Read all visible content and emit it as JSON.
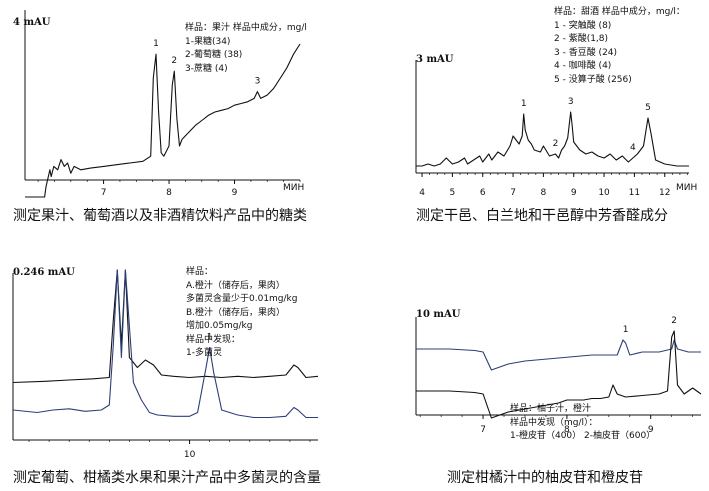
{
  "chart_data": [
    {
      "type": "line",
      "unit_label": "4 mAU",
      "xlabel": "МИН",
      "xlim": [
        5.8,
        10.0
      ],
      "ticks": [
        "7",
        "8",
        "9"
      ],
      "tick_values": [
        7,
        8,
        9
      ],
      "caption": "测定果汁、葡萄酒以及非酒精饮料产品中的糖类",
      "legend": [
        "样品：果汁 样品中成分，mg/l",
        "1-果糖(34)",
        "2-葡萄糖 (38)",
        "3-蔗糖 (4)"
      ],
      "peak_labels": [
        {
          "label": "1",
          "x": 7.8
        },
        {
          "label": "2",
          "x": 8.08
        },
        {
          "label": "3",
          "x": 9.35
        }
      ],
      "series": [
        {
          "color": "#111111",
          "values": [
            [
              5.8,
              -5
            ],
            [
              6.1,
              -5
            ],
            [
              6.12,
              -2
            ],
            [
              6.18,
              3
            ],
            [
              6.2,
              1
            ],
            [
              6.24,
              4
            ],
            [
              6.3,
              3
            ],
            [
              6.35,
              6
            ],
            [
              6.4,
              4
            ],
            [
              6.45,
              5
            ],
            [
              6.5,
              2
            ],
            [
              6.55,
              4
            ],
            [
              6.65,
              3
            ],
            [
              6.8,
              3.5
            ],
            [
              7.0,
              4
            ],
            [
              7.2,
              4.5
            ],
            [
              7.4,
              5
            ],
            [
              7.6,
              5.5
            ],
            [
              7.72,
              7
            ],
            [
              7.76,
              30
            ],
            [
              7.8,
              37
            ],
            [
              7.84,
              20
            ],
            [
              7.88,
              8
            ],
            [
              7.92,
              7
            ],
            [
              8.0,
              10
            ],
            [
              8.05,
              28
            ],
            [
              8.08,
              32
            ],
            [
              8.12,
              18
            ],
            [
              8.16,
              10
            ],
            [
              8.2,
              12
            ],
            [
              8.3,
              14
            ],
            [
              8.4,
              16
            ],
            [
              8.5,
              17.5
            ],
            [
              8.6,
              19
            ],
            [
              8.7,
              20
            ],
            [
              8.8,
              20.5
            ],
            [
              8.9,
              21
            ],
            [
              9.0,
              22
            ],
            [
              9.1,
              22.5
            ],
            [
              9.2,
              23
            ],
            [
              9.3,
              24
            ],
            [
              9.35,
              26
            ],
            [
              9.4,
              24
            ],
            [
              9.5,
              25
            ],
            [
              9.6,
              27
            ],
            [
              9.7,
              30
            ],
            [
              9.8,
              33
            ],
            [
              9.9,
              37
            ],
            [
              10.0,
              40
            ]
          ]
        }
      ]
    },
    {
      "type": "line",
      "unit_label": "3 mAU",
      "xlabel": "МИН",
      "xlim": [
        3.8,
        12.8
      ],
      "ticks": [
        "4",
        "5",
        "6",
        "7",
        "8",
        "9",
        "10",
        "11",
        "12"
      ],
      "tick_values": [
        4,
        5,
        6,
        7,
        8,
        9,
        10,
        11,
        12
      ],
      "caption": "测定干邑、白兰地和干邑醇中芳香醛成分",
      "legend": [
        "样品：甜酒 样品中成分，mg/l：",
        "1 - 突触酸 (8)",
        "2 - 紫酸(1,8)",
        "3 - 香豆酸 (24)",
        "4 - 咖啡酸 (4)",
        "5 - 没算子酸 (256)"
      ],
      "peak_labels": [
        {
          "label": "1",
          "x": 7.35
        },
        {
          "label": "2",
          "x": 8.4
        },
        {
          "label": "3",
          "x": 8.9
        },
        {
          "label": "4",
          "x": 10.95
        },
        {
          "label": "5",
          "x": 11.45
        }
      ],
      "series": [
        {
          "color": "#111111",
          "values": [
            [
              3.8,
              2
            ],
            [
              4.0,
              2
            ],
            [
              4.2,
              3
            ],
            [
              4.4,
              2
            ],
            [
              4.6,
              3
            ],
            [
              4.8,
              6
            ],
            [
              5.0,
              3
            ],
            [
              5.2,
              4
            ],
            [
              5.4,
              6
            ],
            [
              5.5,
              3
            ],
            [
              5.7,
              5
            ],
            [
              5.9,
              7
            ],
            [
              6.0,
              4
            ],
            [
              6.2,
              8
            ],
            [
              6.3,
              5
            ],
            [
              6.5,
              9
            ],
            [
              6.7,
              7
            ],
            [
              6.9,
              12
            ],
            [
              7.0,
              17
            ],
            [
              7.1,
              15
            ],
            [
              7.2,
              13
            ],
            [
              7.3,
              17
            ],
            [
              7.35,
              28
            ],
            [
              7.4,
              20
            ],
            [
              7.5,
              15
            ],
            [
              7.6,
              13
            ],
            [
              7.7,
              10
            ],
            [
              7.9,
              9
            ],
            [
              8.0,
              12
            ],
            [
              8.2,
              7
            ],
            [
              8.4,
              8
            ],
            [
              8.5,
              6
            ],
            [
              8.6,
              10
            ],
            [
              8.7,
              12
            ],
            [
              8.8,
              16
            ],
            [
              8.9,
              29
            ],
            [
              8.95,
              22
            ],
            [
              9.0,
              14
            ],
            [
              9.2,
              10
            ],
            [
              9.4,
              8
            ],
            [
              9.6,
              9
            ],
            [
              9.8,
              7
            ],
            [
              10.0,
              6
            ],
            [
              10.2,
              8
            ],
            [
              10.4,
              5
            ],
            [
              10.6,
              7
            ],
            [
              10.8,
              4
            ],
            [
              10.95,
              6
            ],
            [
              11.1,
              8
            ],
            [
              11.3,
              12
            ],
            [
              11.45,
              26
            ],
            [
              11.55,
              18
            ],
            [
              11.7,
              5
            ],
            [
              12.0,
              3
            ],
            [
              12.4,
              2
            ],
            [
              12.8,
              2
            ]
          ]
        }
      ]
    },
    {
      "type": "line",
      "unit_label": "0.246 mAU",
      "xlabel": "",
      "xlim": [
        7.8,
        11.6
      ],
      "ticks": [
        "10"
      ],
      "tick_values": [
        10
      ],
      "caption": "测定葡萄、柑橘类水果和果汁产品中多菌灵的含量",
      "legend": [
        "样品：",
        "A.橙汁（储存后，果肉）",
        "多菌灵含量少于0.01mg/kg",
        "B.橙汁（储存后，果肉）",
        "增加0.05mg/kg",
        "样品中发现：",
        "1-多菌灵"
      ],
      "peak_labels": [
        {
          "label": "1",
          "x": 10.25
        }
      ],
      "series": [
        {
          "name": "A",
          "color": "#111111",
          "values": [
            [
              7.8,
              10
            ],
            [
              8.2,
              11
            ],
            [
              8.5,
              12
            ],
            [
              8.8,
              13
            ],
            [
              9.0,
              14
            ],
            [
              9.05,
              60
            ],
            [
              9.1,
              100
            ],
            [
              9.15,
              40
            ],
            [
              9.2,
              100
            ],
            [
              9.25,
              30
            ],
            [
              9.35,
              22
            ],
            [
              9.45,
              28
            ],
            [
              9.55,
              24
            ],
            [
              9.65,
              16
            ],
            [
              9.8,
              15
            ],
            [
              10.0,
              14
            ],
            [
              10.2,
              15
            ],
            [
              10.4,
              14
            ],
            [
              10.6,
              15
            ],
            [
              10.8,
              14
            ],
            [
              11.0,
              15
            ],
            [
              11.2,
              16
            ],
            [
              11.3,
              24
            ],
            [
              11.35,
              22
            ],
            [
              11.45,
              14
            ],
            [
              11.6,
              15
            ]
          ]
        },
        {
          "name": "B",
          "color": "#2c3f78",
          "values": [
            [
              7.8,
              -12
            ],
            [
              8.1,
              -14
            ],
            [
              8.3,
              -12
            ],
            [
              8.5,
              -11
            ],
            [
              8.7,
              -13
            ],
            [
              8.9,
              -12
            ],
            [
              9.0,
              -8
            ],
            [
              9.05,
              40
            ],
            [
              9.1,
              100
            ],
            [
              9.15,
              30
            ],
            [
              9.2,
              100
            ],
            [
              9.3,
              10
            ],
            [
              9.4,
              -4
            ],
            [
              9.5,
              -14
            ],
            [
              9.6,
              -16
            ],
            [
              9.8,
              -17
            ],
            [
              10.0,
              -17
            ],
            [
              10.1,
              -14
            ],
            [
              10.2,
              20
            ],
            [
              10.25,
              38
            ],
            [
              10.3,
              18
            ],
            [
              10.4,
              -12
            ],
            [
              10.6,
              -16
            ],
            [
              10.8,
              -18
            ],
            [
              11.0,
              -18
            ],
            [
              11.2,
              -17
            ],
            [
              11.3,
              -10
            ],
            [
              11.35,
              -12
            ],
            [
              11.45,
              -18
            ],
            [
              11.6,
              -18
            ]
          ]
        }
      ]
    },
    {
      "type": "line",
      "unit_label": "10 mAU",
      "xlabel": "",
      "xlim": [
        6.2,
        9.6
      ],
      "ticks": [
        "7",
        "8",
        "9"
      ],
      "tick_values": [
        7,
        8,
        9
      ],
      "caption": "测定柑橘汁中的柚皮苷和橙皮苷",
      "legend": [
        "样品：柚子汁，橙汁",
        "样品中发现（mg/l）：",
        "1-橙皮苷（400） 2-柚皮苷（600）"
      ],
      "peak_labels": [
        {
          "label": "1",
          "x": 8.7
        },
        {
          "label": "2",
          "x": 9.28
        }
      ],
      "series": [
        {
          "name": "upper",
          "color": "#2c3f78",
          "values": [
            [
              6.2,
              22
            ],
            [
              6.6,
              22
            ],
            [
              6.9,
              21.5
            ],
            [
              7.0,
              21
            ],
            [
              7.1,
              15
            ],
            [
              7.2,
              16
            ],
            [
              7.3,
              17
            ],
            [
              7.5,
              18
            ],
            [
              7.7,
              18.5
            ],
            [
              7.9,
              19
            ],
            [
              8.1,
              19.5
            ],
            [
              8.3,
              20
            ],
            [
              8.5,
              20
            ],
            [
              8.6,
              20
            ],
            [
              8.67,
              25
            ],
            [
              8.7,
              24
            ],
            [
              8.75,
              20
            ],
            [
              8.9,
              21
            ],
            [
              9.1,
              21
            ],
            [
              9.25,
              22
            ],
            [
              9.28,
              25
            ],
            [
              9.32,
              22
            ],
            [
              9.45,
              21
            ],
            [
              9.6,
              21
            ]
          ]
        },
        {
          "name": "lower",
          "color": "#111111",
          "values": [
            [
              6.2,
              8
            ],
            [
              6.6,
              8
            ],
            [
              6.9,
              7.5
            ],
            [
              7.0,
              7
            ],
            [
              7.1,
              -1
            ],
            [
              7.2,
              0
            ],
            [
              7.3,
              1
            ],
            [
              7.5,
              2
            ],
            [
              7.7,
              3
            ],
            [
              7.9,
              4
            ],
            [
              8.0,
              5
            ],
            [
              8.2,
              5
            ],
            [
              8.3,
              5.5
            ],
            [
              8.4,
              5.5
            ],
            [
              8.5,
              6
            ],
            [
              8.55,
              10
            ],
            [
              8.6,
              7
            ],
            [
              8.7,
              6
            ],
            [
              8.9,
              6.5
            ],
            [
              9.1,
              7
            ],
            [
              9.2,
              8
            ],
            [
              9.25,
              26
            ],
            [
              9.28,
              28
            ],
            [
              9.32,
              10
            ],
            [
              9.4,
              7
            ],
            [
              9.5,
              9
            ],
            [
              9.6,
              7
            ]
          ]
        }
      ]
    }
  ]
}
